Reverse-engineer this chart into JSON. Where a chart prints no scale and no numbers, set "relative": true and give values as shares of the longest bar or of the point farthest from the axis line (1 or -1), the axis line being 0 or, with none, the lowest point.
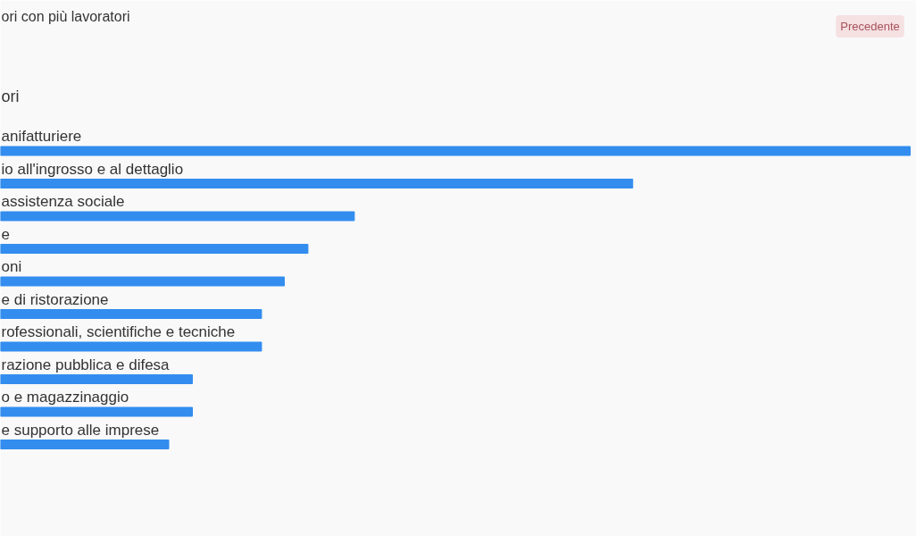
{
  "chart_data": {
    "type": "bar",
    "orientation": "horizontal",
    "relative": true,
    "title": "ori con più lavoratori",
    "subtitle": "ori",
    "categories": [
      "anifatturiere",
      "io all'ingrosso e al dettaglio",
      "assistenza sociale",
      "e",
      "oni",
      "e di ristorazione",
      "rofessionali, scientifiche e tecniche",
      "razione pubblica e difesa",
      "o e magazzinaggio",
      "e supporto alle imprese"
    ],
    "values": [
      1,
      0.695,
      0.389,
      0.338,
      0.312,
      0.287,
      0.287,
      0.211,
      0.211,
      0.185
    ],
    "color": "#328def",
    "annotations": [
      "Precedente"
    ]
  }
}
